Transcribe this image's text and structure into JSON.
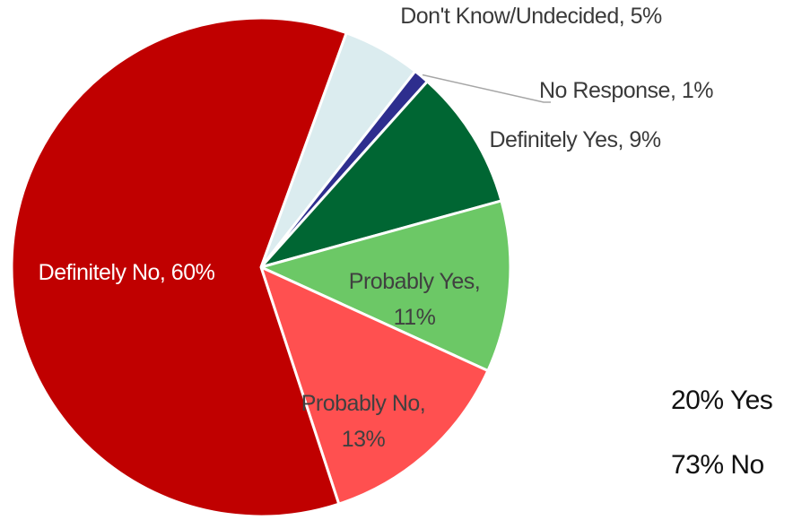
{
  "chart_data": {
    "type": "pie",
    "slices": [
      {
        "label": "Don't Know/Undecided, 5%",
        "value": 5,
        "color": "#dbecef",
        "label_color": "#3a3a3a"
      },
      {
        "label": "No Response, 1%",
        "value": 1,
        "color": "#2e2e8e",
        "label_color": "#3a3a3a"
      },
      {
        "label": "Definitely Yes, 9%",
        "value": 9,
        "color": "#006633",
        "label_color": "#3a3a3a"
      },
      {
        "label": "Probably Yes, 11%",
        "value": 11,
        "color": "#6cc866",
        "label_color": "#404040"
      },
      {
        "label": "Probably No, 13%",
        "value": 13,
        "color": "#ff5050",
        "label_color": "#404040"
      },
      {
        "label": "Definitely No, 60%",
        "value": 60,
        "color": "#c00000",
        "label_color": "#ffffff"
      }
    ],
    "summary": [
      "20% Yes",
      "73% No"
    ]
  }
}
